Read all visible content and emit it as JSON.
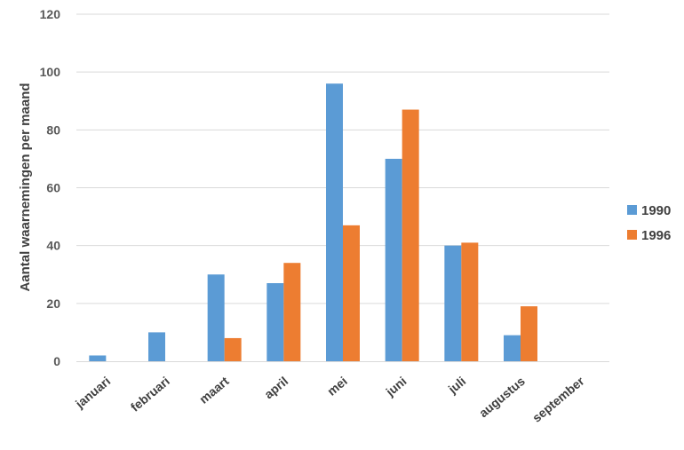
{
  "chart_data": {
    "type": "bar",
    "title": "",
    "xlabel": "",
    "ylabel": "Aantal waarnemingen per maand",
    "ylim": [
      0,
      120
    ],
    "yticks": [
      0,
      20,
      40,
      60,
      80,
      100,
      120
    ],
    "grid": true,
    "legend_position": "right",
    "categories": [
      "januari",
      "februari",
      "maart",
      "april",
      "mei",
      "juni",
      "juli",
      "augustus",
      "september"
    ],
    "series": [
      {
        "name": "1990",
        "color": "#5b9bd5",
        "values": [
          2,
          10,
          30,
          27,
          96,
          70,
          40,
          9,
          0
        ]
      },
      {
        "name": "1996",
        "color": "#ed7d31",
        "values": [
          0,
          0,
          8,
          34,
          47,
          87,
          41,
          19,
          0
        ]
      }
    ]
  }
}
